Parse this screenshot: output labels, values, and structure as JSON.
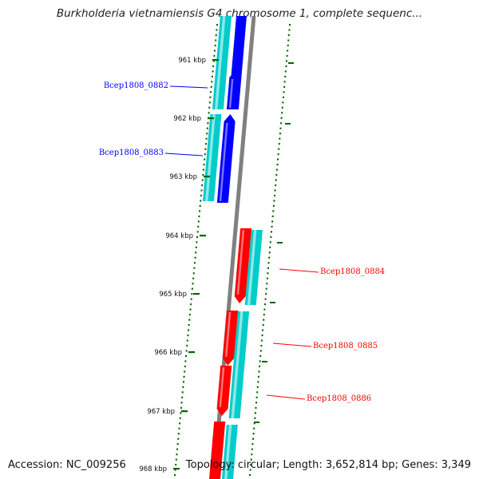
{
  "title": "Burkholderia vietnamiensis G4 chromosome 1, complete sequenc...",
  "footer": {
    "accession": "Accession: NC_009256",
    "summary": "Topology: circular; Length: 3,652,814 bp; Genes: 3,349"
  },
  "scale": {
    "ticks": [
      {
        "label": "961 kbp"
      },
      {
        "label": "962 kbp"
      },
      {
        "label": "963 kbp"
      },
      {
        "label": "964 kbp"
      },
      {
        "label": "965 kbp"
      },
      {
        "label": "966 kbp"
      },
      {
        "label": "967 kbp"
      },
      {
        "label": "968 kbp"
      }
    ]
  },
  "genes": [
    {
      "name": "Bcep1808_0882",
      "strand": "reverse",
      "color": "#0000ff"
    },
    {
      "name": "Bcep1808_0883",
      "strand": "reverse",
      "color": "#0000ff"
    },
    {
      "name": "Bcep1808_0884",
      "strand": "forward",
      "color": "#ff0000"
    },
    {
      "name": "Bcep1808_0885",
      "strand": "forward",
      "color": "#ff0000"
    },
    {
      "name": "Bcep1808_0886",
      "strand": "forward",
      "color": "#ff0000"
    }
  ],
  "colors": {
    "backbone": "#808080",
    "cds": "#00cccc",
    "reverse_gene": "#0000ff",
    "forward_gene": "#ff0000",
    "tick": "#006400"
  }
}
